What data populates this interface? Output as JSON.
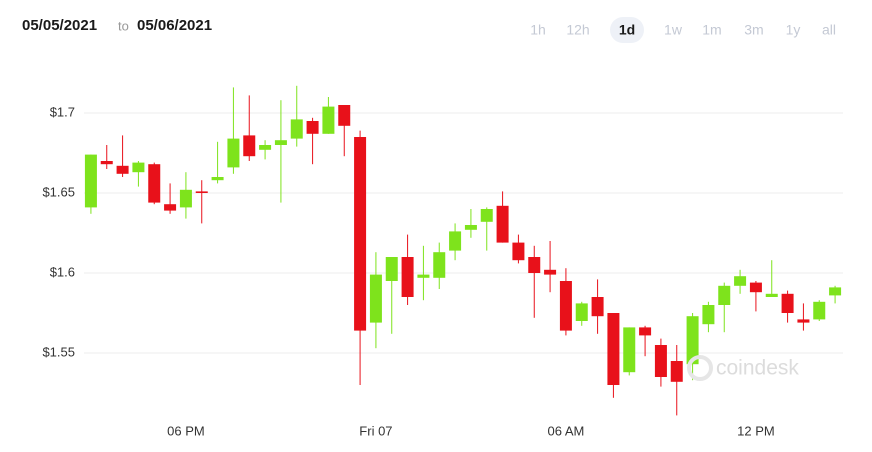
{
  "chart_data": {
    "type": "candlestick",
    "header": {
      "from": "05/05/2021",
      "to_word": "to",
      "to": "05/06/2021"
    },
    "ranges": [
      "1h",
      "12h",
      "1d",
      "1w",
      "1m",
      "3m",
      "1y",
      "all"
    ],
    "selected_range": "1d",
    "watermark": "coindesk",
    "up_color": "#7ee31c",
    "down_color": "#e8111a",
    "grid": true,
    "ylim": [
      1.505,
      1.73
    ],
    "yticks": [
      {
        "value": 1.55,
        "label": "$1.55"
      },
      {
        "value": 1.6,
        "label": "$1.6"
      },
      {
        "value": 1.65,
        "label": "$1.65"
      },
      {
        "value": 1.7,
        "label": "$1.7"
      }
    ],
    "categories": [
      null,
      null,
      null,
      null,
      null,
      null,
      "06 PM",
      null,
      null,
      null,
      null,
      null,
      null,
      null,
      null,
      null,
      null,
      null,
      "Fri 07",
      null,
      null,
      null,
      null,
      null,
      null,
      null,
      null,
      null,
      null,
      null,
      "06 AM",
      null,
      null,
      null,
      null,
      null,
      null,
      null,
      null,
      null,
      null,
      null,
      "12 PM",
      null,
      null,
      null,
      null,
      null
    ],
    "open": [
      1.641,
      1.67,
      1.667,
      1.663,
      1.668,
      1.643,
      1.641,
      1.651,
      1.658,
      1.666,
      1.686,
      1.677,
      1.68,
      1.684,
      1.695,
      1.687,
      1.705,
      1.685,
      1.569,
      1.595,
      1.61,
      1.597,
      1.597,
      1.614,
      1.627,
      1.632,
      1.642,
      1.619,
      1.61,
      1.602,
      1.595,
      1.57,
      1.585,
      1.575,
      1.538,
      1.566,
      1.555,
      1.545,
      1.543,
      1.568,
      1.58,
      1.592,
      1.594,
      1.585,
      1.587,
      1.571,
      1.571,
      1.586
    ],
    "high": [
      1.674,
      1.68,
      1.686,
      1.67,
      1.669,
      1.656,
      1.663,
      1.658,
      1.682,
      1.716,
      1.711,
      1.683,
      1.708,
      1.717,
      1.697,
      1.71,
      1.705,
      1.689,
      1.613,
      1.61,
      1.624,
      1.617,
      1.619,
      1.631,
      1.64,
      1.641,
      1.651,
      1.624,
      1.617,
      1.62,
      1.603,
      1.582,
      1.596,
      1.575,
      1.566,
      1.567,
      1.559,
      1.555,
      1.575,
      1.582,
      1.594,
      1.602,
      1.595,
      1.608,
      1.589,
      1.581,
      1.583,
      1.592
    ],
    "low": [
      1.637,
      1.665,
      1.66,
      1.654,
      1.643,
      1.637,
      1.634,
      1.631,
      1.656,
      1.662,
      1.67,
      1.671,
      1.644,
      1.679,
      1.668,
      1.687,
      1.673,
      1.53,
      1.553,
      1.562,
      1.58,
      1.583,
      1.59,
      1.608,
      1.622,
      1.614,
      1.619,
      1.606,
      1.572,
      1.588,
      1.561,
      1.567,
      1.562,
      1.522,
      1.536,
      1.548,
      1.529,
      1.511,
      1.533,
      1.563,
      1.563,
      1.587,
      1.576,
      1.585,
      1.569,
      1.564,
      1.57,
      1.581
    ],
    "close": [
      1.674,
      1.668,
      1.662,
      1.669,
      1.644,
      1.639,
      1.652,
      1.65,
      1.66,
      1.684,
      1.673,
      1.68,
      1.683,
      1.696,
      1.687,
      1.704,
      1.692,
      1.564,
      1.599,
      1.61,
      1.585,
      1.599,
      1.613,
      1.626,
      1.63,
      1.64,
      1.619,
      1.608,
      1.6,
      1.599,
      1.564,
      1.581,
      1.573,
      1.53,
      1.566,
      1.561,
      1.535,
      1.532,
      1.573,
      1.58,
      1.592,
      1.598,
      1.588,
      1.587,
      1.575,
      1.569,
      1.582,
      1.591
    ]
  }
}
